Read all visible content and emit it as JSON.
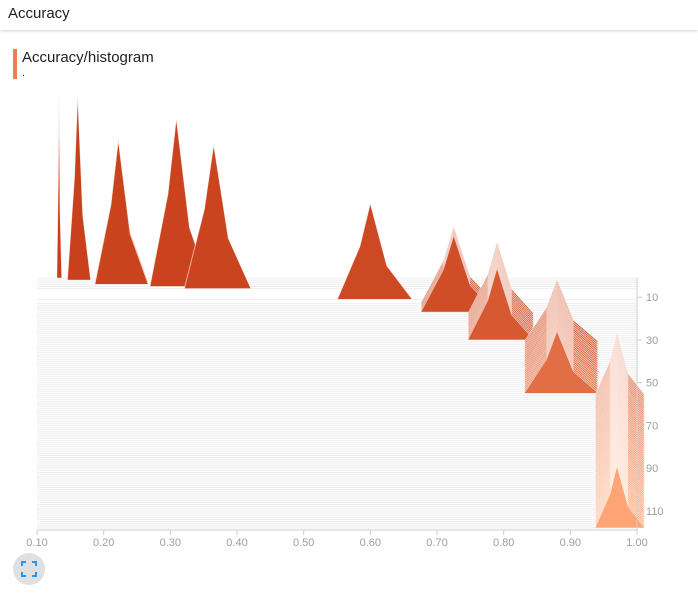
{
  "header": {
    "title": "Accuracy"
  },
  "card": {
    "title": "Accuracy/histogram",
    "subtitle": "."
  },
  "icons": {
    "expand": "fullscreen-icon"
  },
  "colors": {
    "first_step": "#c8401b",
    "last_step": "#ffa474",
    "accent": "#f57c4e"
  },
  "chart_data": {
    "type": "histogram-offset",
    "title": "Accuracy/histogram",
    "x_ticks": [
      "0.10",
      "0.20",
      "0.30",
      "0.40",
      "0.50",
      "0.60",
      "0.70",
      "0.80",
      "0.90",
      "1.00"
    ],
    "y_ticks": [
      "10",
      "30",
      "50",
      "70",
      "90",
      "110"
    ],
    "xlim": [
      0.1,
      1.0
    ],
    "step_range": [
      1,
      118
    ],
    "groups": [
      {
        "steps": [
          1
        ],
        "peak_x": 0.133,
        "halfwidth": 0.003,
        "height": 0.77
      },
      {
        "steps": [
          2
        ],
        "peak_x": 0.161,
        "halfwidth": 0.014,
        "height": 0.77
      },
      {
        "steps": [
          3,
          4
        ],
        "peak_x": 0.222,
        "halfwidth": 0.032,
        "height": 0.6
      },
      {
        "steps": [
          5
        ],
        "peak_x": 0.309,
        "halfwidth": 0.036,
        "height": 0.7
      },
      {
        "steps": [
          6
        ],
        "peak_x": 0.365,
        "halfwidth": 0.04,
        "height": 0.6
      },
      {
        "steps": [
          11
        ],
        "peak_x": 0.6,
        "halfwidth": 0.045,
        "height": 0.4
      },
      {
        "steps": [
          13,
          17
        ],
        "peak_x": 0.725,
        "halfwidth": 0.045,
        "height": 0.32
      },
      {
        "steps": [
          18,
          30
        ],
        "peak_x": 0.79,
        "halfwidth": 0.04,
        "height": 0.3
      },
      {
        "steps": [
          31,
          55
        ],
        "peak_x": 0.88,
        "halfwidth": 0.045,
        "height": 0.26
      },
      {
        "steps": [
          56,
          118
        ],
        "peak_x": 0.97,
        "halfwidth": 0.03,
        "height": 0.26
      }
    ]
  }
}
